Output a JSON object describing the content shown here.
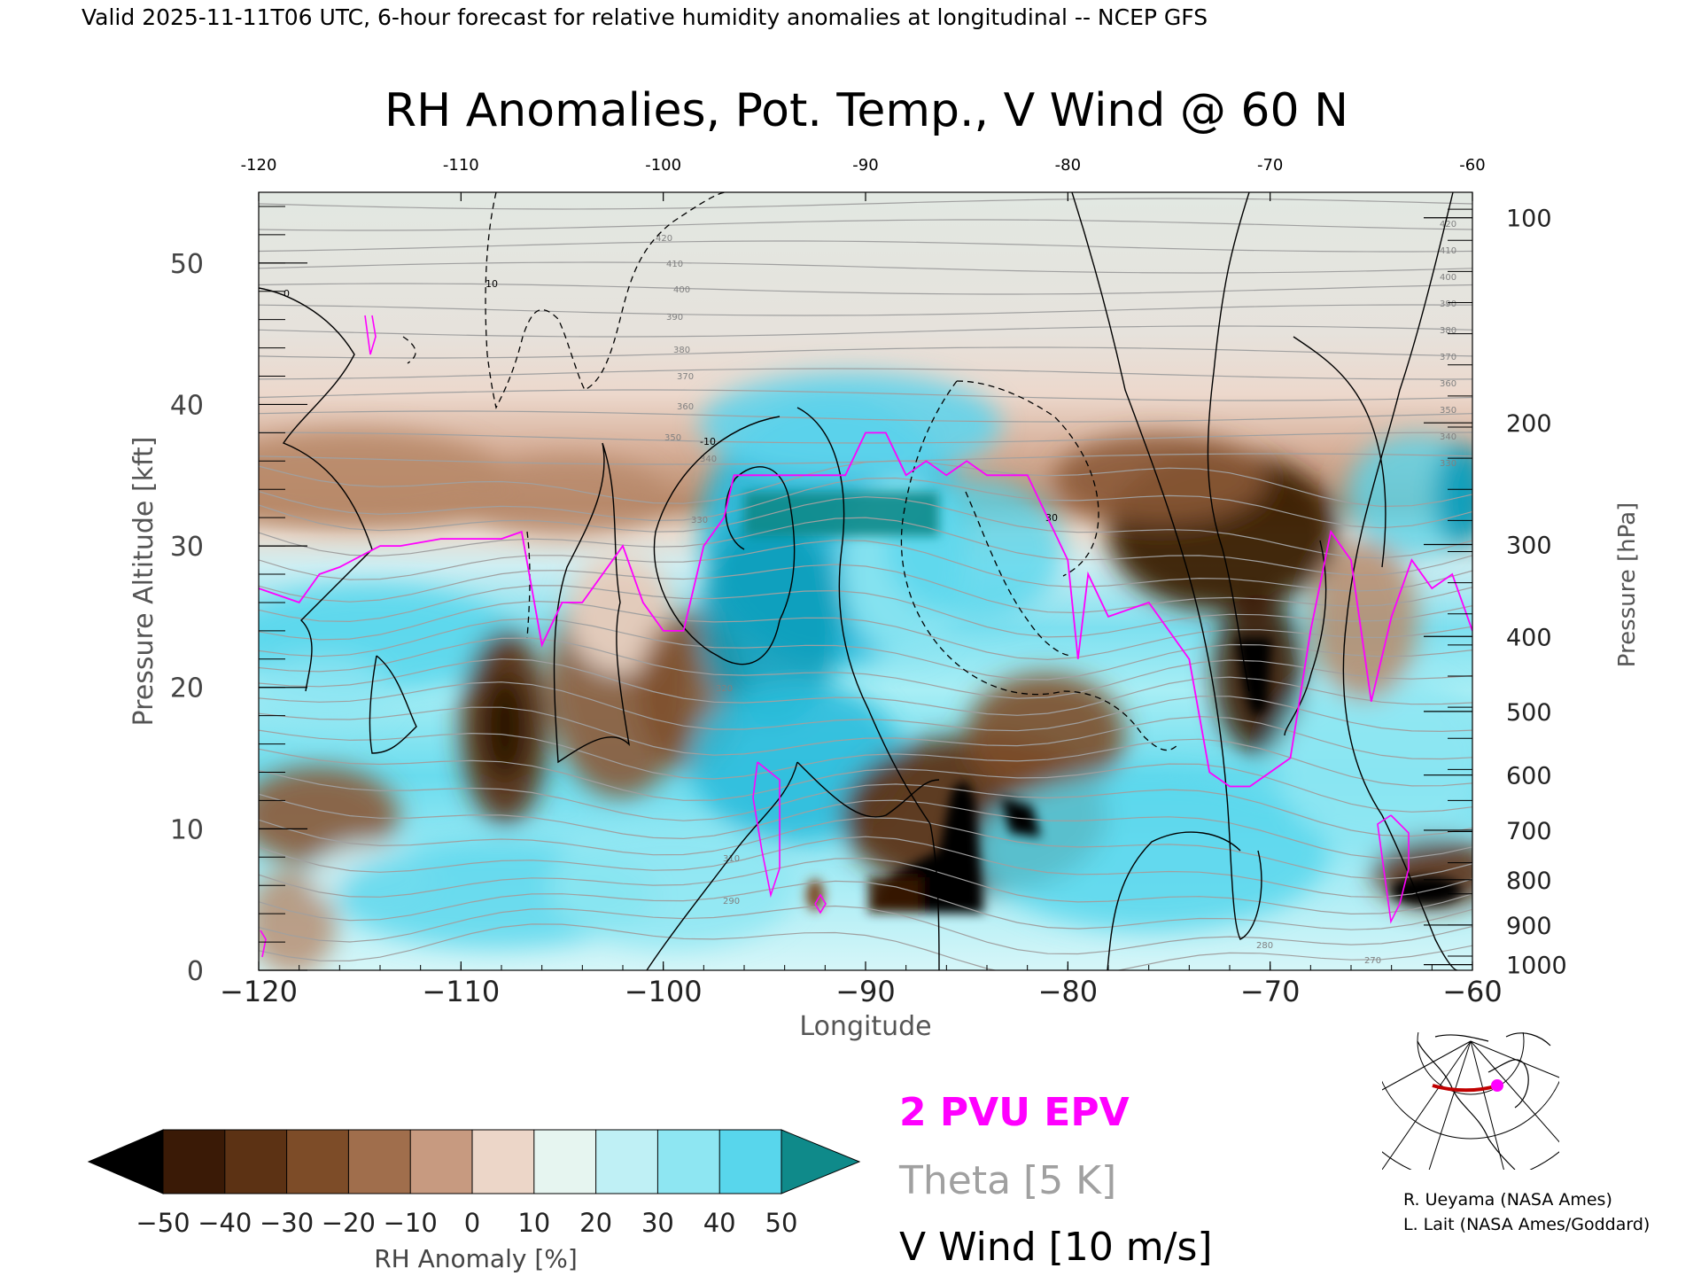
{
  "header": {
    "valid_line": "Valid 2025-11-11T06 UTC, 6-hour forecast for relative humidity anomalies at longitudinal -- NCEP GFS",
    "title": "RH Anomalies, Pot. Temp., V Wind @ 60 N"
  },
  "chart_data": {
    "type": "heatmap",
    "title": "RH Anomalies, Pot. Temp., V Wind @ 60 N",
    "xlabel": "Longitude",
    "ylabel_left": "Pressure Altitude [kft]",
    "ylabel_right": "Pressure [hPa]",
    "xlim": [
      -120,
      -60
    ],
    "ylim": [
      0,
      55
    ],
    "x_ticks": [
      -120,
      -110,
      -100,
      -90,
      -80,
      -70,
      -60
    ],
    "x_tick_labels": [
      "−120",
      "−110",
      "−100",
      "−90",
      "−80",
      "−70",
      "−60"
    ],
    "top_x_tick_labels": [
      "-120",
      "-110",
      "-100",
      "-90",
      "-80",
      "-70",
      "-60"
    ],
    "y_ticks": [
      0,
      10,
      20,
      30,
      40,
      50
    ],
    "y_tick_labels": [
      "0",
      "10",
      "20",
      "30",
      "40",
      "50"
    ],
    "pressure_ticks": [
      {
        "kft": 53.2,
        "label": "100"
      },
      {
        "kft": 38.7,
        "label": "200"
      },
      {
        "kft": 30.1,
        "label": "300"
      },
      {
        "kft": 23.6,
        "label": "400"
      },
      {
        "kft": 18.3,
        "label": "500"
      },
      {
        "kft": 13.8,
        "label": "600"
      },
      {
        "kft": 9.9,
        "label": "700"
      },
      {
        "kft": 6.4,
        "label": "800"
      },
      {
        "kft": 3.2,
        "label": "900"
      },
      {
        "kft": 0.4,
        "label": "1000"
      }
    ],
    "colorbar": {
      "label": "RH Anomaly [%]",
      "ticks": [
        "−50",
        "−40",
        "−30",
        "−20",
        "−10",
        "0",
        "10",
        "20",
        "30",
        "40",
        "50"
      ],
      "colors": [
        "#000000",
        "#3a1a06",
        "#5c3214",
        "#7d4c28",
        "#a06e4c",
        "#c79a80",
        "#ecd6c8",
        "#e6f5f0",
        "#bff0f5",
        "#8ee6f2",
        "#58d6ec",
        "#2cbcdc",
        "#0a9ab8",
        "#0f8a8a"
      ]
    },
    "legend": [
      {
        "label": "2 PVU EPV",
        "color": "#ff00ff"
      },
      {
        "label": "Theta [5 K]",
        "color": "#a0a0a0"
      },
      {
        "label": "V Wind [10 m/s]",
        "color": "#000000"
      }
    ],
    "theta_labels": [
      "420",
      "410",
      "400",
      "390",
      "380",
      "370",
      "360",
      "350",
      "340",
      "330",
      "320",
      "310",
      "290",
      "280",
      "270"
    ],
    "vwind_labels": [
      "0",
      "10",
      "-10",
      "30"
    ],
    "epv_line": {
      "x": [
        -120,
        -118,
        -117,
        -116,
        -114,
        -113,
        -111,
        -109,
        -108,
        -107,
        -106,
        -105,
        -104,
        -102,
        -101,
        -100,
        -99,
        -98,
        -97.5,
        -97,
        -96.5,
        -95,
        -93,
        -92,
        -91,
        -90,
        -89,
        -88,
        -87,
        -86,
        -85,
        -84,
        -83,
        -82,
        -81,
        -80,
        -79.5,
        -79,
        -78,
        -76,
        -75,
        -74,
        -73,
        -72,
        -71,
        -70,
        -69,
        -68,
        -67,
        -66,
        -65,
        -64,
        -63,
        -62,
        -61,
        -60
      ],
      "y": [
        27,
        26,
        28,
        28.5,
        30,
        30,
        30.5,
        30.5,
        30.5,
        31,
        23,
        26,
        26,
        30,
        26,
        24,
        24,
        30,
        31,
        32,
        35,
        35,
        35,
        35,
        35,
        38,
        38,
        35,
        36,
        35,
        36,
        35,
        35,
        35,
        32,
        29,
        22,
        28,
        25,
        26,
        24,
        22,
        14,
        13,
        13,
        14,
        15,
        24,
        31,
        29,
        19,
        25,
        29,
        27,
        28,
        24
      ]
    }
  },
  "inset_map": {
    "credit_1": "R. Ueyama (NASA Ames)",
    "credit_2": "L. Lait (NASA Ames/Goddard)"
  }
}
